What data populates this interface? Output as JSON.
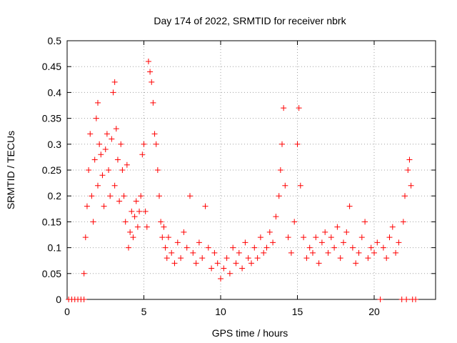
{
  "chart_data": {
    "type": "scatter",
    "title": "Day 174 of 2022, SRMTID for receiver nbrk",
    "xlabel": "GPS time / hours",
    "ylabel": "SRMTID / TECUs",
    "xlim": [
      0,
      24
    ],
    "ylim": [
      0,
      0.5
    ],
    "x_ticks": [
      0,
      5,
      10,
      15,
      20
    ],
    "x_tick_labels": [
      "0",
      "5",
      "10",
      "15",
      "20"
    ],
    "y_ticks": [
      0,
      0.05,
      0.1,
      0.15,
      0.2,
      0.25,
      0.3,
      0.35,
      0.4,
      0.45,
      0.5
    ],
    "y_tick_labels": [
      "0",
      "0.05",
      "0.1",
      "0.15",
      "0.2",
      "0.25",
      "0.3",
      "0.35",
      "0.4",
      "0.45",
      "0.5"
    ],
    "grid": true,
    "marker": "+",
    "marker_color": "#ff0000",
    "series": [
      {
        "name": "SRMTID",
        "points": [
          [
            0.1,
            0
          ],
          [
            0.3,
            0
          ],
          [
            0.5,
            0
          ],
          [
            0.7,
            0
          ],
          [
            0.9,
            0
          ],
          [
            1.1,
            0
          ],
          [
            1.1,
            0.05
          ],
          [
            1.2,
            0.12
          ],
          [
            1.3,
            0.18
          ],
          [
            1.4,
            0.25
          ],
          [
            1.5,
            0.32
          ],
          [
            1.6,
            0.2
          ],
          [
            1.7,
            0.15
          ],
          [
            1.8,
            0.27
          ],
          [
            1.9,
            0.35
          ],
          [
            2.0,
            0.38
          ],
          [
            2.0,
            0.22
          ],
          [
            2.1,
            0.3
          ],
          [
            2.2,
            0.28
          ],
          [
            2.3,
            0.24
          ],
          [
            2.4,
            0.18
          ],
          [
            2.5,
            0.29
          ],
          [
            2.6,
            0.32
          ],
          [
            2.7,
            0.25
          ],
          [
            2.8,
            0.2
          ],
          [
            2.9,
            0.31
          ],
          [
            3.0,
            0.4
          ],
          [
            3.1,
            0.42
          ],
          [
            3.1,
            0.22
          ],
          [
            3.2,
            0.33
          ],
          [
            3.3,
            0.27
          ],
          [
            3.4,
            0.19
          ],
          [
            3.5,
            0.3
          ],
          [
            3.6,
            0.25
          ],
          [
            3.7,
            0.2
          ],
          [
            3.8,
            0.15
          ],
          [
            3.9,
            0.26
          ],
          [
            4.0,
            0.1
          ],
          [
            4.1,
            0.13
          ],
          [
            4.2,
            0.17
          ],
          [
            4.3,
            0.12
          ],
          [
            4.4,
            0.16
          ],
          [
            4.5,
            0.19
          ],
          [
            4.6,
            0.14
          ],
          [
            4.7,
            0.17
          ],
          [
            4.8,
            0.2
          ],
          [
            4.9,
            0.28
          ],
          [
            5.0,
            0.3
          ],
          [
            5.1,
            0.17
          ],
          [
            5.2,
            0.14
          ],
          [
            5.3,
            0.46
          ],
          [
            5.4,
            0.44
          ],
          [
            5.5,
            0.42
          ],
          [
            5.6,
            0.38
          ],
          [
            5.7,
            0.32
          ],
          [
            5.8,
            0.3
          ],
          [
            5.9,
            0.25
          ],
          [
            6.0,
            0.2
          ],
          [
            6.1,
            0.15
          ],
          [
            6.2,
            0.12
          ],
          [
            6.3,
            0.14
          ],
          [
            6.4,
            0.1
          ],
          [
            6.5,
            0.08
          ],
          [
            6.6,
            0.12
          ],
          [
            6.8,
            0.09
          ],
          [
            7.0,
            0.07
          ],
          [
            7.2,
            0.11
          ],
          [
            7.4,
            0.08
          ],
          [
            7.6,
            0.13
          ],
          [
            7.8,
            0.1
          ],
          [
            8.0,
            0.2
          ],
          [
            8.2,
            0.09
          ],
          [
            8.4,
            0.07
          ],
          [
            8.6,
            0.11
          ],
          [
            8.8,
            0.08
          ],
          [
            9.0,
            0.18
          ],
          [
            9.2,
            0.1
          ],
          [
            9.4,
            0.06
          ],
          [
            9.6,
            0.09
          ],
          [
            9.8,
            0.07
          ],
          [
            10.0,
            0.04
          ],
          [
            10.2,
            0.06
          ],
          [
            10.4,
            0.08
          ],
          [
            10.6,
            0.05
          ],
          [
            10.8,
            0.1
          ],
          [
            11.0,
            0.07
          ],
          [
            11.2,
            0.09
          ],
          [
            11.4,
            0.06
          ],
          [
            11.6,
            0.11
          ],
          [
            11.8,
            0.08
          ],
          [
            12.0,
            0.07
          ],
          [
            12.2,
            0.1
          ],
          [
            12.4,
            0.08
          ],
          [
            12.6,
            0.12
          ],
          [
            12.8,
            0.09
          ],
          [
            13.0,
            0.1
          ],
          [
            13.2,
            0.13
          ],
          [
            13.4,
            0.11
          ],
          [
            13.6,
            0.16
          ],
          [
            13.8,
            0.2
          ],
          [
            13.9,
            0.25
          ],
          [
            14.0,
            0.3
          ],
          [
            14.1,
            0.37
          ],
          [
            14.2,
            0.22
          ],
          [
            14.4,
            0.12
          ],
          [
            14.6,
            0.09
          ],
          [
            14.8,
            0.15
          ],
          [
            15.0,
            0.3
          ],
          [
            15.1,
            0.37
          ],
          [
            15.2,
            0.22
          ],
          [
            15.4,
            0.12
          ],
          [
            15.6,
            0.08
          ],
          [
            15.8,
            0.1
          ],
          [
            16.0,
            0.09
          ],
          [
            16.2,
            0.12
          ],
          [
            16.4,
            0.07
          ],
          [
            16.6,
            0.11
          ],
          [
            16.8,
            0.13
          ],
          [
            17.0,
            0.09
          ],
          [
            17.2,
            0.12
          ],
          [
            17.4,
            0.1
          ],
          [
            17.6,
            0.14
          ],
          [
            17.8,
            0.08
          ],
          [
            18.0,
            0.11
          ],
          [
            18.2,
            0.13
          ],
          [
            18.4,
            0.18
          ],
          [
            18.6,
            0.1
          ],
          [
            18.8,
            0.07
          ],
          [
            19.0,
            0.09
          ],
          [
            19.2,
            0.12
          ],
          [
            19.4,
            0.15
          ],
          [
            19.6,
            0.08
          ],
          [
            19.8,
            0.1
          ],
          [
            20.0,
            0.09
          ],
          [
            20.2,
            0.11
          ],
          [
            20.4,
            0.0
          ],
          [
            20.6,
            0.1
          ],
          [
            20.8,
            0.08
          ],
          [
            21.0,
            0.12
          ],
          [
            21.2,
            0.14
          ],
          [
            21.4,
            0.09
          ],
          [
            21.6,
            0.11
          ],
          [
            21.8,
            0.0
          ],
          [
            21.9,
            0.15
          ],
          [
            22.0,
            0.2
          ],
          [
            22.1,
            0.0
          ],
          [
            22.2,
            0.25
          ],
          [
            22.3,
            0.27
          ],
          [
            22.4,
            0.22
          ],
          [
            22.5,
            0.0
          ],
          [
            22.7,
            0.0
          ]
        ]
      }
    ]
  }
}
